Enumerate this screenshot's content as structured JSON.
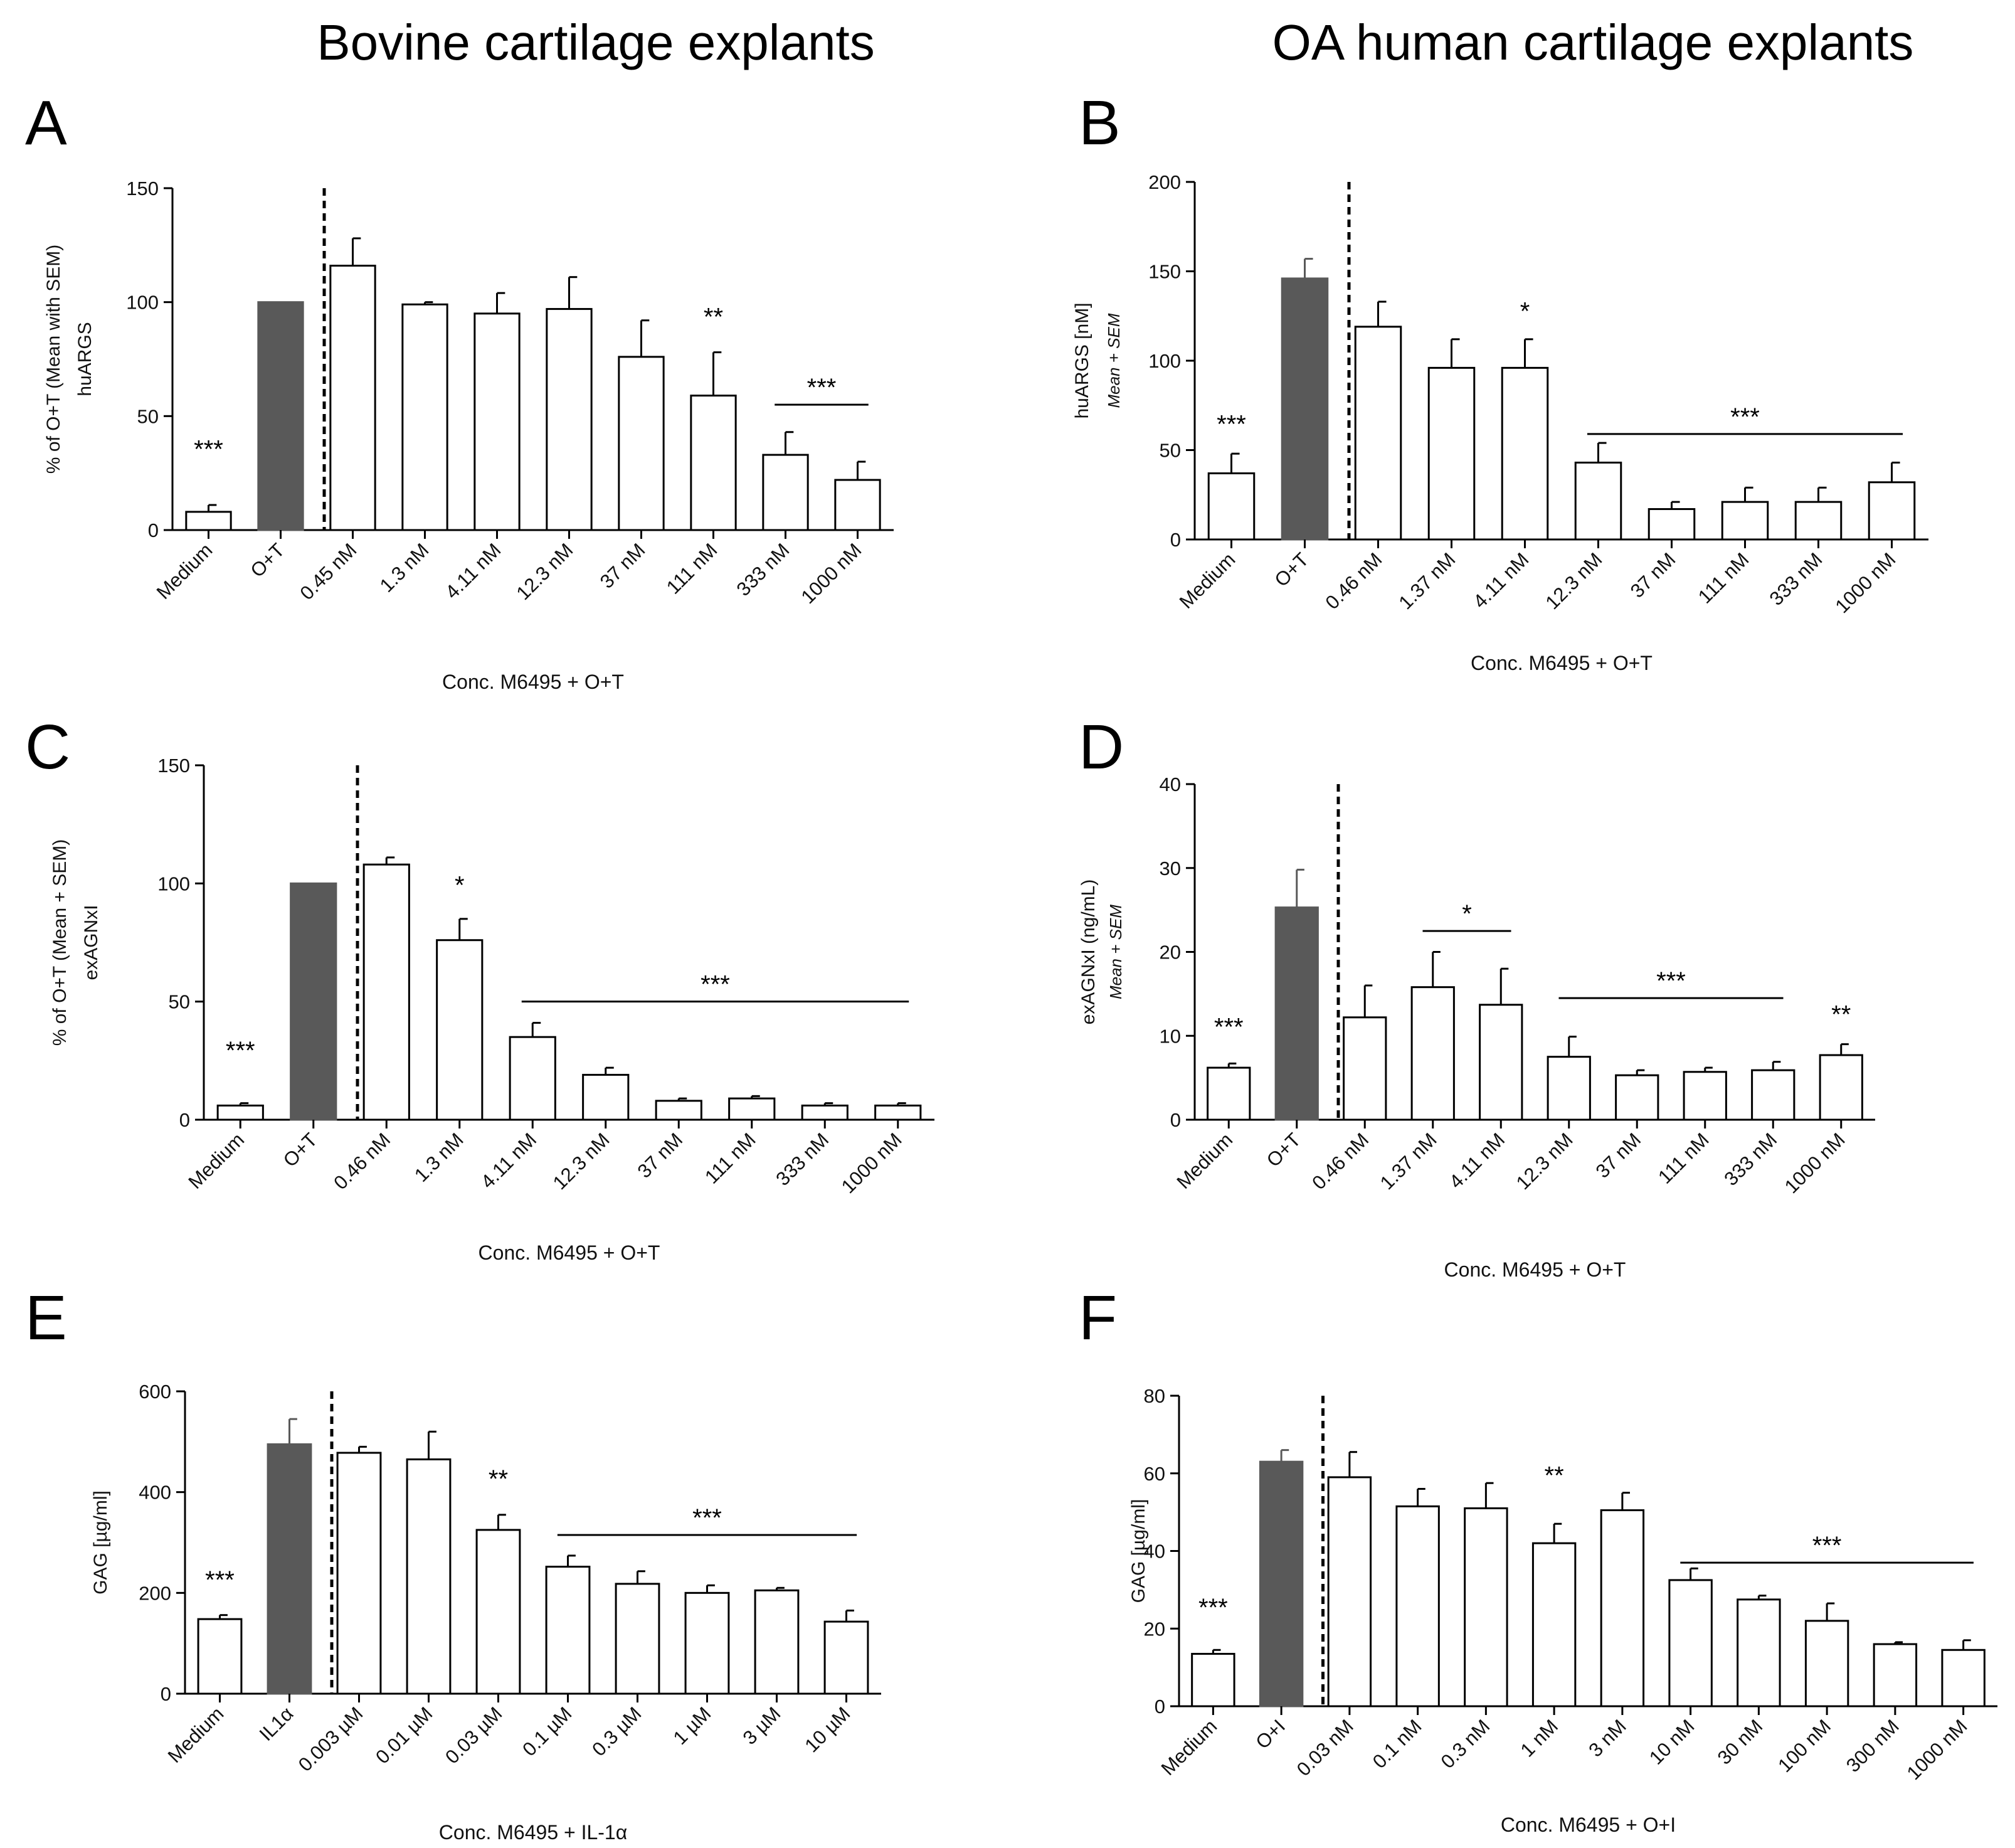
{
  "column_titles": [
    "Bovine cartilage explants",
    "OA human cartilage explants"
  ],
  "colors": {
    "treatment_bar": "#595959",
    "bar_fill": "#ffffff",
    "stroke": "#000000"
  },
  "chart_data": [
    {
      "panel": "A",
      "type": "bar",
      "ylabel": "% of  O+T (Mean with SEM)",
      "ylabel2": "huARGS",
      "xlabel": "Conc. M6495 + O+T",
      "ylim": [
        0,
        150
      ],
      "yticks": [
        0,
        50,
        100,
        150
      ],
      "categories": [
        "Medium",
        "O+T",
        "0.45 nM",
        "1.3 nM",
        "4.11 nM",
        "12.3 nM",
        "37 nM",
        "111 nM",
        "333 nM",
        "1000 nM"
      ],
      "values": [
        8,
        100,
        116,
        99,
        95,
        97,
        76,
        59,
        33,
        22
      ],
      "errors": [
        3,
        0,
        12,
        1,
        9,
        14,
        16,
        19,
        10,
        8
      ],
      "significance": [
        {
          "label": "***",
          "from": 0,
          "to": 0,
          "y": 28
        },
        {
          "label": "**",
          "from": 7,
          "to": 7,
          "y": 86
        },
        {
          "label": "***",
          "from": 8,
          "to": 9,
          "y": 55,
          "line": true
        }
      ]
    },
    {
      "panel": "B",
      "type": "bar",
      "ylabel": "huARGS [nM]",
      "ylabel2": "Mean + SEM",
      "xlabel": "Conc. M6495 + O+T",
      "ylim": [
        0,
        200
      ],
      "yticks": [
        0,
        50,
        100,
        150,
        200
      ],
      "categories": [
        "Medium",
        "O+T",
        "0.46 nM",
        "1.37 nM",
        "4.11 nM",
        "12.3 nM",
        "37 nM",
        "111 nM",
        "333 nM",
        "1000 nM"
      ],
      "values": [
        37,
        146,
        119,
        96,
        96,
        43,
        17,
        21,
        21,
        32
      ],
      "errors": [
        11,
        11,
        14,
        16,
        16,
        11,
        4,
        8,
        8,
        11
      ],
      "significance": [
        {
          "label": "***",
          "from": 0,
          "to": 0,
          "y": 55
        },
        {
          "label": "*",
          "from": 4,
          "to": 4,
          "y": 118
        },
        {
          "label": "***",
          "from": 5,
          "to": 9,
          "y": 59,
          "line": true
        }
      ]
    },
    {
      "panel": "C",
      "type": "bar",
      "ylabel": "% of O+T (Mean + SEM)",
      "ylabel2": "exAGNxI",
      "xlabel": "Conc. M6495 + O+T",
      "ylim": [
        0,
        150
      ],
      "yticks": [
        0,
        50,
        100,
        150
      ],
      "categories": [
        "Medium",
        "O+T",
        "0.46 nM",
        "1.3 nM",
        "4.11 nM",
        "12.3 nM",
        "37 nM",
        "111 nM",
        "333 nM",
        "1000 nM"
      ],
      "values": [
        6,
        100,
        108,
        76,
        35,
        19,
        8,
        9,
        6,
        6
      ],
      "errors": [
        1,
        0,
        3,
        9,
        6,
        3,
        1,
        1,
        1,
        1
      ],
      "significance": [
        {
          "label": "***",
          "from": 0,
          "to": 0,
          "y": 22
        },
        {
          "label": "*",
          "from": 3,
          "to": 3,
          "y": 92
        },
        {
          "label": "***",
          "from": 4,
          "to": 9,
          "y": 50,
          "line": true
        }
      ]
    },
    {
      "panel": "D",
      "type": "bar",
      "ylabel": "exAGNxI (ng/mL)",
      "ylabel2": "Mean + SEM",
      "xlabel": "Conc. M6495 + O+T",
      "ylim": [
        0,
        40
      ],
      "yticks": [
        0,
        10,
        20,
        30,
        40
      ],
      "categories": [
        "Medium",
        "O+T",
        "0.46 nM",
        "1.37 nM",
        "4.11 nM",
        "12.3 nM",
        "37 nM",
        "111 nM",
        "333 nM",
        "1000 nM"
      ],
      "values": [
        6.2,
        25.3,
        12.2,
        15.8,
        13.7,
        7.5,
        5.3,
        5.7,
        5.9,
        7.7
      ],
      "errors": [
        0.5,
        4.5,
        3.8,
        4.2,
        4.3,
        2.4,
        0.6,
        0.5,
        1.0,
        1.3
      ],
      "significance": [
        {
          "label": "***",
          "from": 0,
          "to": 0,
          "y": 9
        },
        {
          "label": "*",
          "from": 3,
          "to": 4,
          "y": 22.5,
          "line": true
        },
        {
          "label": "***",
          "from": 5,
          "to": 8,
          "y": 14.5,
          "line": true
        },
        {
          "label": "**",
          "from": 9,
          "to": 9,
          "y": 10.5
        }
      ]
    },
    {
      "panel": "E",
      "type": "bar",
      "ylabel": "GAG  [µg/ml]",
      "ylabel2": "",
      "xlabel": "Conc. M6495 + IL-1α",
      "ylim": [
        0,
        600
      ],
      "yticks": [
        0,
        200,
        400,
        600
      ],
      "categories": [
        "Medium",
        "IL1α",
        "0.003 µM",
        "0.01 µM",
        "0.03 µM",
        "0.1 µM",
        "0.3 µM",
        "1 µM",
        "3 µM",
        "10 µM"
      ],
      "values": [
        148,
        495,
        478,
        465,
        325,
        252,
        218,
        200,
        205,
        143
      ],
      "errors": [
        8,
        50,
        12,
        55,
        30,
        22,
        25,
        15,
        5,
        22
      ],
      "significance": [
        {
          "label": "***",
          "from": 0,
          "to": 0,
          "y": 192
        },
        {
          "label": "**",
          "from": 4,
          "to": 4,
          "y": 392
        },
        {
          "label": "***",
          "from": 5,
          "to": 9,
          "y": 315,
          "line": true
        }
      ]
    },
    {
      "panel": "F",
      "type": "bar",
      "ylabel": "GAG  [µg/ml]",
      "ylabel2": "",
      "xlabel": "Conc. M6495 + O+I",
      "ylim": [
        0,
        80
      ],
      "yticks": [
        0,
        20,
        40,
        60,
        80
      ],
      "categories": [
        "Medium",
        "O+I",
        "0.03 nM",
        "0.1 nM",
        "0.3 nM",
        "1 nM",
        "3 nM",
        "10 nM",
        "30 nM",
        "100 nM",
        "300 nM",
        "1000 nM"
      ],
      "values": [
        13.5,
        63,
        59,
        51.5,
        51,
        42,
        50.5,
        32.5,
        27.5,
        22,
        16,
        14.5
      ],
      "errors": [
        1,
        3,
        6.5,
        4.5,
        6.5,
        5,
        4.5,
        3,
        1,
        4.5,
        0.5,
        2.5
      ],
      "significance": [
        {
          "label": "***",
          "from": 0,
          "to": 0,
          "y": 21
        },
        {
          "label": "**",
          "from": 5,
          "to": 5,
          "y": 55
        },
        {
          "label": "***",
          "from": 7,
          "to": 11,
          "y": 37,
          "line": true
        }
      ]
    }
  ]
}
